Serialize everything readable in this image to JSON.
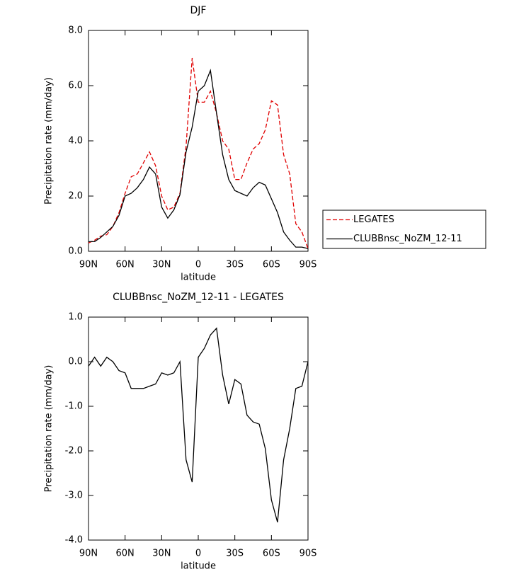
{
  "chart_data": [
    {
      "type": "line",
      "title": "DJF",
      "xlabel": "latitude",
      "ylabel": "Precipitation rate (mm/day)",
      "x": [
        90,
        85,
        80,
        75,
        70,
        65,
        60,
        55,
        50,
        45,
        40,
        35,
        30,
        25,
        20,
        15,
        10,
        5,
        0,
        -5,
        -10,
        -15,
        -20,
        -25,
        -30,
        -35,
        -40,
        -45,
        -50,
        -55,
        -60,
        -65,
        -70,
        -75,
        -80,
        -85,
        -90
      ],
      "series": [
        {
          "name": "LEGATES",
          "color": "#e00000",
          "line_style": "dashed",
          "values": [
            0.3,
            0.4,
            0.55,
            0.6,
            0.9,
            1.4,
            2.1,
            2.7,
            2.8,
            3.2,
            3.6,
            3.1,
            2.0,
            1.5,
            1.6,
            2.1,
            3.8,
            7.0,
            5.4,
            5.4,
            5.8,
            5.0,
            4.0,
            3.7,
            2.6,
            2.6,
            3.2,
            3.7,
            3.9,
            4.4,
            5.45,
            5.3,
            3.5,
            2.8,
            1.0,
            0.7,
            0.1
          ]
        },
        {
          "name": "CLUBBnsc_NoZM_12-11",
          "color": "#000000",
          "line_style": "solid",
          "values": [
            0.35,
            0.35,
            0.5,
            0.7,
            0.9,
            1.3,
            2.0,
            2.1,
            2.3,
            2.6,
            3.05,
            2.8,
            1.6,
            1.2,
            1.5,
            2.05,
            3.6,
            4.5,
            5.8,
            6.0,
            6.55,
            5.0,
            3.5,
            2.6,
            2.2,
            2.1,
            2.0,
            2.3,
            2.5,
            2.4,
            1.9,
            1.4,
            0.7,
            0.4,
            0.15,
            0.15,
            0.1
          ]
        }
      ],
      "xlim": [
        90,
        -90
      ],
      "xticks": [
        {
          "value": 90,
          "label": "90N"
        },
        {
          "value": 60,
          "label": "60N"
        },
        {
          "value": 30,
          "label": "30N"
        },
        0,
        {
          "value": -30,
          "label": "30S"
        },
        {
          "value": -60,
          "label": "60S"
        },
        {
          "value": -90,
          "label": "90S"
        }
      ],
      "ylim": [
        0,
        8
      ],
      "yticks": [
        {
          "value": 0,
          "label": "0.0"
        },
        {
          "value": 2,
          "label": "2.0"
        },
        {
          "value": 4,
          "label": "4.0"
        },
        {
          "value": 6,
          "label": "6.0"
        },
        {
          "value": 8,
          "label": "8.0"
        }
      ],
      "legend": "right"
    },
    {
      "type": "line",
      "title": "CLUBBnsc_NoZM_12-11 - LEGATES",
      "xlabel": "latitude",
      "ylabel": "Precipitation rate (mm/day)",
      "x": [
        90,
        85,
        80,
        75,
        70,
        65,
        60,
        55,
        50,
        45,
        40,
        35,
        30,
        25,
        20,
        15,
        10,
        5,
        0,
        -5,
        -10,
        -15,
        -20,
        -25,
        -30,
        -35,
        -40,
        -45,
        -50,
        -55,
        -60,
        -65,
        -70,
        -75,
        -80,
        -85,
        -90
      ],
      "series": [
        {
          "color": "#000000",
          "line_style": "solid",
          "values": [
            -0.1,
            0.1,
            -0.1,
            0.1,
            0.0,
            -0.2,
            -0.25,
            -0.6,
            -0.6,
            -0.6,
            -0.55,
            -0.5,
            -0.25,
            -0.3,
            -0.25,
            0.0,
            -2.2,
            -2.7,
            0.1,
            0.3,
            0.6,
            0.75,
            -0.3,
            -0.95,
            -0.4,
            -0.5,
            -1.2,
            -1.35,
            -1.4,
            -1.95,
            -3.1,
            -3.6,
            -2.2,
            -1.5,
            -0.6,
            -0.55,
            0.0
          ]
        }
      ],
      "xlim": [
        90,
        -90
      ],
      "xticks": [
        {
          "value": 90,
          "label": "90N"
        },
        {
          "value": 60,
          "label": "60N"
        },
        {
          "value": 30,
          "label": "30N"
        },
        0,
        {
          "value": -30,
          "label": "30S"
        },
        {
          "value": -60,
          "label": "60S"
        },
        {
          "value": -90,
          "label": "90S"
        }
      ],
      "ylim": [
        -4,
        1
      ],
      "yticks": [
        {
          "value": -4,
          "label": "-4.0"
        },
        {
          "value": -3,
          "label": "-3.0"
        },
        {
          "value": -2,
          "label": "-2.0"
        },
        {
          "value": -1,
          "label": "-1.0"
        },
        {
          "value": 0,
          "label": "0.0"
        },
        {
          "value": 1,
          "label": "1.0"
        }
      ]
    }
  ]
}
